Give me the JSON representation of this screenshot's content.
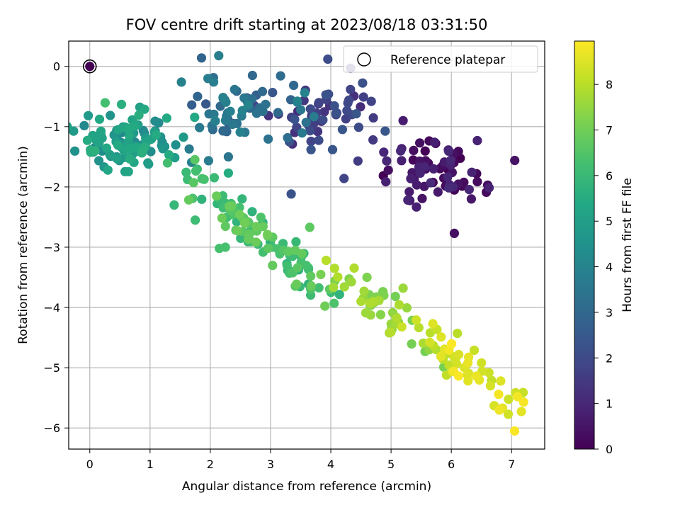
{
  "chart_data": {
    "type": "scatter",
    "title": "FOV centre drift starting at 2023/08/18 03:31:50",
    "xlabel": "Angular distance from reference (arcmin)",
    "ylabel": "Rotation from reference (arcmin)",
    "xlim": [
      -0.35,
      7.55
    ],
    "ylim": [
      -6.35,
      0.42
    ],
    "xticks": [
      0,
      1,
      2,
      3,
      4,
      5,
      6,
      7
    ],
    "yticks": [
      0,
      -1,
      -2,
      -3,
      -4,
      -5,
      -6
    ],
    "grid": true,
    "legend": {
      "placement": "top-right",
      "entries": [
        "Reference platepar"
      ]
    },
    "reference_point": {
      "x": 0,
      "y": 0
    },
    "colorbar": {
      "label": "Hours from first FF file",
      "range": [
        0,
        8.95
      ],
      "ticks": [
        0,
        1,
        2,
        3,
        4,
        5,
        6,
        7,
        8
      ],
      "colormap": "viridis"
    },
    "segments": [
      {
        "t": [
          0.0,
          1.1
        ],
        "center": [
          5.8,
          -1.7
        ],
        "spread": [
          0.45,
          0.3
        ],
        "n": 70
      },
      {
        "t": [
          1.1,
          2.4
        ],
        "center": [
          3.9,
          -0.8
        ],
        "spread": [
          0.45,
          0.28
        ],
        "n": 55
      },
      {
        "t": [
          2.4,
          4.0
        ],
        "center": [
          2.5,
          -0.7
        ],
        "spread": [
          0.55,
          0.35
        ],
        "n": 65
      },
      {
        "t": [
          4.0,
          5.7
        ],
        "center": [
          0.6,
          -1.25
        ],
        "spread": [
          0.4,
          0.22
        ],
        "n": 110
      },
      {
        "t": [
          5.7,
          7.0
        ],
        "center": [
          2.7,
          -2.7
        ],
        "spread": [
          0.7,
          0.5
        ],
        "n": 110
      },
      {
        "t": [
          7.0,
          8.0
        ],
        "center": [
          4.7,
          -3.9
        ],
        "spread": [
          0.45,
          0.4
        ],
        "n": 45
      },
      {
        "t": [
          8.0,
          8.95
        ],
        "center": [
          6.2,
          -5.0
        ],
        "spread": [
          0.45,
          0.35
        ],
        "n": 40
      }
    ],
    "notable_points": [
      {
        "x": 3.95,
        "y": 0.12,
        "t": 2.1
      },
      {
        "x": 1.52,
        "y": -0.26,
        "t": 3.9
      },
      {
        "x": 2.7,
        "y": -0.15,
        "t": 3.0
      },
      {
        "x": 6.05,
        "y": -2.77,
        "t": 0.4
      },
      {
        "x": 6.42,
        "y": -1.78,
        "t": 0.2
      },
      {
        "x": 4.22,
        "y": -1.86,
        "t": 1.8
      },
      {
        "x": 5.2,
        "y": -0.9,
        "t": 0.7
      },
      {
        "x": 2.15,
        "y": -3.02,
        "t": 6.3
      },
      {
        "x": 2.25,
        "y": -3.0,
        "t": 6.3
      },
      {
        "x": 3.65,
        "y": -2.67,
        "t": 6.7
      },
      {
        "x": 0.3,
        "y": -1.72,
        "t": 5.3
      },
      {
        "x": 4.6,
        "y": -3.5,
        "t": 7.2
      },
      {
        "x": 4.65,
        "y": -3.96,
        "t": 7.4
      },
      {
        "x": 5.2,
        "y": -3.68,
        "t": 7.6
      },
      {
        "x": 7.05,
        "y": -6.05,
        "t": 8.9
      },
      {
        "x": 7.1,
        "y": -5.48,
        "t": 8.8
      },
      {
        "x": 7.2,
        "y": -5.57,
        "t": 8.85
      },
      {
        "x": 6.85,
        "y": -5.67,
        "t": 8.6
      },
      {
        "x": 6.82,
        "y": -5.22,
        "t": 8.5
      },
      {
        "x": 6.65,
        "y": -5.3,
        "t": 8.4
      },
      {
        "x": 6.5,
        "y": -4.92,
        "t": 8.3
      },
      {
        "x": 6.38,
        "y": -4.71,
        "t": 8.2
      },
      {
        "x": 6.1,
        "y": -4.43,
        "t": 8.0
      },
      {
        "x": 5.65,
        "y": -4.42,
        "t": 8.0
      },
      {
        "x": 5.92,
        "y": -5.12,
        "t": 8.1
      },
      {
        "x": 5.75,
        "y": -4.7,
        "t": 7.9
      },
      {
        "x": 4.25,
        "y": -0.87,
        "t": 1.7
      },
      {
        "x": 4.3,
        "y": -0.56,
        "t": 1.9
      },
      {
        "x": 4.45,
        "y": -1.57,
        "t": 1.6
      },
      {
        "x": 4.7,
        "y": -1.22,
        "t": 1.5
      },
      {
        "x": 3.4,
        "y": -0.88,
        "t": 2.3
      },
      {
        "x": 1.65,
        "y": -1.37,
        "t": 3.7
      },
      {
        "x": 2.3,
        "y": -1.5,
        "t": 3.5
      },
      {
        "x": 2.3,
        "y": -1.77,
        "t": 5.5
      },
      {
        "x": 1.4,
        "y": -2.3,
        "t": 5.9
      },
      {
        "x": 1.75,
        "y": -2.55,
        "t": 6.1
      }
    ]
  }
}
